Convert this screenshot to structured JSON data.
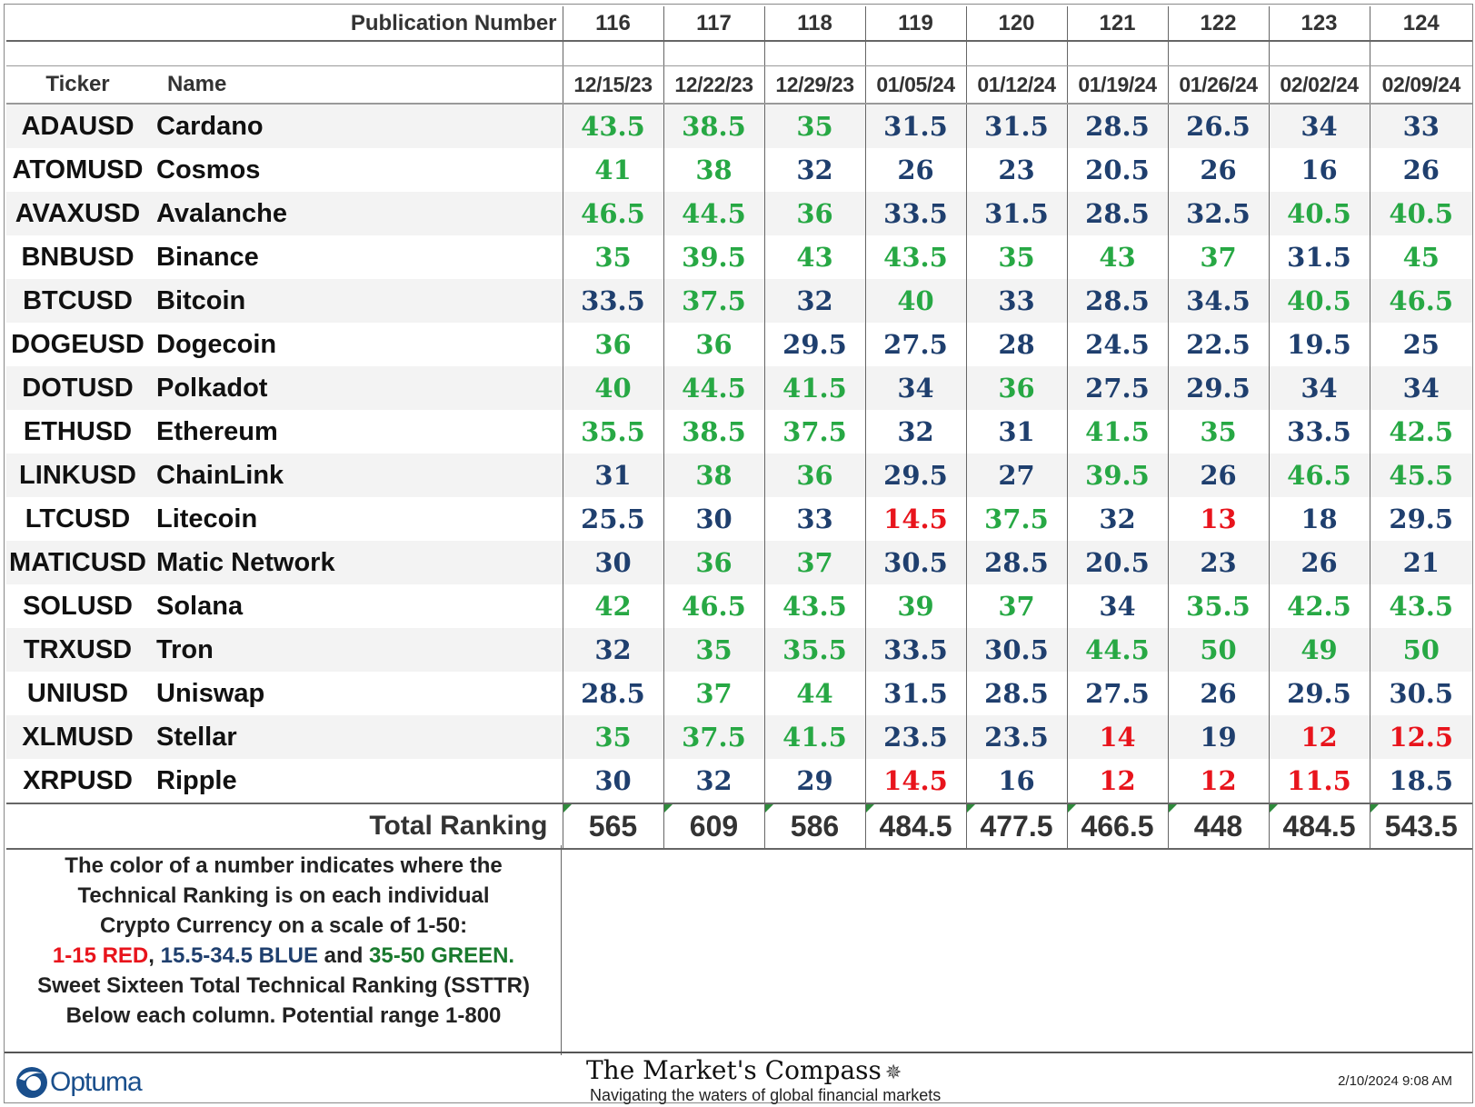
{
  "header": {
    "publication_label": "Publication Number",
    "ticker_label": "Ticker",
    "name_label": "Name",
    "pubs": [
      "116",
      "117",
      "118",
      "119",
      "120",
      "121",
      "122",
      "123",
      "124"
    ],
    "dates": [
      "12/15/23",
      "12/22/23",
      "12/29/23",
      "01/05/24",
      "01/12/24",
      "01/19/24",
      "01/26/24",
      "02/02/24",
      "02/09/24"
    ]
  },
  "colors": {
    "green": "#27a844",
    "blue": "#1f3f6e",
    "red": "#e8141c"
  },
  "rows": [
    {
      "ticker": "ADAUSD",
      "name": "Cardano",
      "values": [
        "43.5",
        "38.5",
        "35",
        "31.5",
        "31.5",
        "28.5",
        "26.5",
        "34",
        "33"
      ]
    },
    {
      "ticker": "ATOMUSD",
      "name": "Cosmos",
      "values": [
        "41",
        "38",
        "32",
        "26",
        "23",
        "20.5",
        "26",
        "16",
        "26"
      ]
    },
    {
      "ticker": "AVAXUSD",
      "name": "Avalanche",
      "values": [
        "46.5",
        "44.5",
        "36",
        "33.5",
        "31.5",
        "28.5",
        "32.5",
        "40.5",
        "40.5"
      ]
    },
    {
      "ticker": "BNBUSD",
      "name": "Binance",
      "values": [
        "35",
        "39.5",
        "43",
        "43.5",
        "35",
        "43",
        "37",
        "31.5",
        "45"
      ]
    },
    {
      "ticker": "BTCUSD",
      "name": "Bitcoin",
      "values": [
        "33.5",
        "37.5",
        "32",
        "40",
        "33",
        "28.5",
        "34.5",
        "40.5",
        "46.5"
      ]
    },
    {
      "ticker": "DOGEUSD",
      "name": "Dogecoin",
      "values": [
        "36",
        "36",
        "29.5",
        "27.5",
        "28",
        "24.5",
        "22.5",
        "19.5",
        "25"
      ]
    },
    {
      "ticker": "DOTUSD",
      "name": "Polkadot",
      "values": [
        "40",
        "44.5",
        "41.5",
        "34",
        "36",
        "27.5",
        "29.5",
        "34",
        "34"
      ]
    },
    {
      "ticker": "ETHUSD",
      "name": "Ethereum",
      "values": [
        "35.5",
        "38.5",
        "37.5",
        "32",
        "31",
        "41.5",
        "35",
        "33.5",
        "42.5"
      ]
    },
    {
      "ticker": "LINKUSD",
      "name": "ChainLink",
      "values": [
        "31",
        "38",
        "36",
        "29.5",
        "27",
        "39.5",
        "26",
        "46.5",
        "45.5"
      ]
    },
    {
      "ticker": "LTCUSD",
      "name": "Litecoin",
      "values": [
        "25.5",
        "30",
        "33",
        "14.5",
        "37.5",
        "32",
        "13",
        "18",
        "29.5"
      ]
    },
    {
      "ticker": "MATICUSD",
      "name": "Matic Network",
      "values": [
        "30",
        "36",
        "37",
        "30.5",
        "28.5",
        "20.5",
        "23",
        "26",
        "21"
      ]
    },
    {
      "ticker": "SOLUSD",
      "name": "Solana",
      "values": [
        "42",
        "46.5",
        "43.5",
        "39",
        "37",
        "34",
        "35.5",
        "42.5",
        "43.5"
      ]
    },
    {
      "ticker": "TRXUSD",
      "name": "Tron",
      "values": [
        "32",
        "35",
        "35.5",
        "33.5",
        "30.5",
        "44.5",
        "50",
        "49",
        "50"
      ]
    },
    {
      "ticker": "UNIUSD",
      "name": "Uniswap",
      "values": [
        "28.5",
        "37",
        "44",
        "31.5",
        "28.5",
        "27.5",
        "26",
        "29.5",
        "30.5"
      ]
    },
    {
      "ticker": "XLMUSD",
      "name": "Stellar",
      "values": [
        "35",
        "37.5",
        "41.5",
        "23.5",
        "23.5",
        "14",
        "19",
        "12",
        "12.5"
      ]
    },
    {
      "ticker": "XRPUSD",
      "name": "Ripple",
      "values": [
        "30",
        "32",
        "29",
        "14.5",
        "16",
        "12",
        "12",
        "11.5",
        "18.5"
      ]
    }
  ],
  "total": {
    "label": "Total Ranking",
    "values": [
      "565",
      "609",
      "586",
      "484.5",
      "477.5",
      "466.5",
      "448",
      "484.5",
      "543.5"
    ]
  },
  "legend": {
    "line1": "The color of a number indicates where the",
    "line2": "Technical Ranking is on each individual",
    "line3": "Crypto Currency on a scale of 1-50:",
    "red": "1-15 RED",
    "sep1": ", ",
    "blue": "15.5-34.5 BLUE",
    "sep2": " and ",
    "green": "35-50 GREEN.",
    "line5": "Sweet Sixteen Total Technical Ranking (SSTTR)",
    "line6": "Below each column.   Potential range 1-800"
  },
  "footer": {
    "optuma": "Optuma",
    "mc_title": "The Market's Compass",
    "mc_subtitle": "Navigating the waters of global financial markets",
    "timestamp": "2/10/2024 9:08 AM"
  }
}
